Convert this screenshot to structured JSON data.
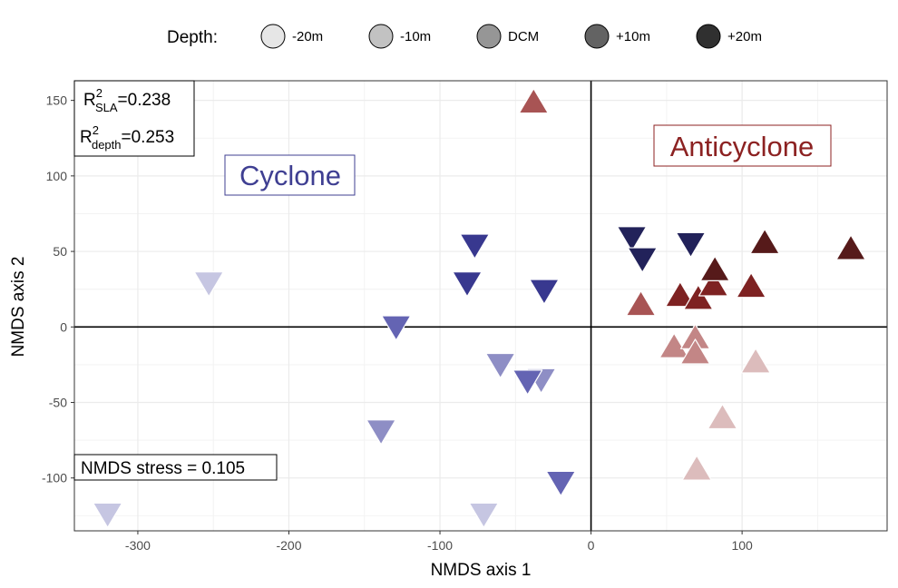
{
  "chart_data": {
    "type": "scatter",
    "title": "",
    "xlabel": "NMDS axis 1",
    "ylabel": "NMDS axis 2",
    "xlim": [
      -342,
      196
    ],
    "ylim": [
      -135,
      163
    ],
    "x_ticks": [
      -300,
      -200,
      -100,
      0,
      100
    ],
    "y_ticks": [
      -100,
      -50,
      0,
      50,
      100,
      150
    ],
    "grid": true,
    "reference_lines": {
      "x": 0,
      "y": 0
    },
    "legend": {
      "title": "Depth:",
      "position": "top",
      "entries": [
        {
          "label": "-20m",
          "color": "#e6e6e6"
        },
        {
          "label": "-10m",
          "color": "#c2c2c2"
        },
        {
          "label": "DCM",
          "color": "#969696"
        },
        {
          "label": "+10m",
          "color": "#636363"
        },
        {
          "label": "+20m",
          "color": "#303030"
        }
      ]
    },
    "annotations": {
      "r2_sla_base": "R",
      "r2_sla_sup": "2",
      "r2_sla_sub": "SLA",
      "r2_sla_value": "=0.238",
      "r2_depth_base": "R",
      "r2_depth_sup": "2",
      "r2_depth_sub": "depth",
      "r2_depth_value": "=0.253",
      "stress": "NMDS stress = 0.105",
      "cyclone_label": "Cyclone",
      "anticyclone_label": "Anticyclone"
    },
    "colors": {
      "cyclone": [
        "#c6c6e2",
        "#8e8ec5",
        "#6464b3",
        "#38388f",
        "#22225a"
      ],
      "anticyclone": [
        "#dcbcbc",
        "#c38686",
        "#a85454",
        "#7e2222",
        "#561a1a"
      ],
      "cyclone_label": "#3f3f92",
      "anticyclone_label": "#8c2222"
    },
    "series": [
      {
        "group": "cyclone",
        "depth": "-20m",
        "points": [
          [
            -253,
            28
          ],
          [
            -320,
            -125
          ],
          [
            -71,
            -125
          ]
        ]
      },
      {
        "group": "cyclone",
        "depth": "-10m",
        "points": [
          [
            -60,
            -26
          ],
          [
            -33,
            -36
          ],
          [
            -139,
            -70
          ]
        ]
      },
      {
        "group": "cyclone",
        "depth": "DCM",
        "points": [
          [
            -129,
            -1
          ],
          [
            -42,
            -37
          ],
          [
            -20,
            -104
          ]
        ]
      },
      {
        "group": "cyclone",
        "depth": "+10m",
        "points": [
          [
            -77,
            53
          ],
          [
            -82,
            28
          ],
          [
            -31,
            23
          ]
        ]
      },
      {
        "group": "cyclone",
        "depth": "+20m",
        "points": [
          [
            27,
            58
          ],
          [
            34,
            44
          ],
          [
            66,
            54
          ]
        ]
      },
      {
        "group": "anticyclone",
        "depth": "-20m",
        "points": [
          [
            109,
            -22
          ],
          [
            87,
            -59
          ],
          [
            70,
            -93
          ]
        ]
      },
      {
        "group": "anticyclone",
        "depth": "-10m",
        "points": [
          [
            55,
            -12
          ],
          [
            69,
            -6
          ],
          [
            69,
            -16
          ]
        ]
      },
      {
        "group": "anticyclone",
        "depth": "DCM",
        "points": [
          [
            -38,
            150
          ],
          [
            33,
            16
          ]
        ]
      },
      {
        "group": "anticyclone",
        "depth": "+10m",
        "points": [
          [
            59,
            22
          ],
          [
            71,
            20
          ],
          [
            81,
            29
          ],
          [
            106,
            28
          ]
        ]
      },
      {
        "group": "anticyclone",
        "depth": "+20m",
        "points": [
          [
            115,
            57
          ],
          [
            82,
            39
          ],
          [
            172,
            53
          ]
        ]
      }
    ]
  }
}
